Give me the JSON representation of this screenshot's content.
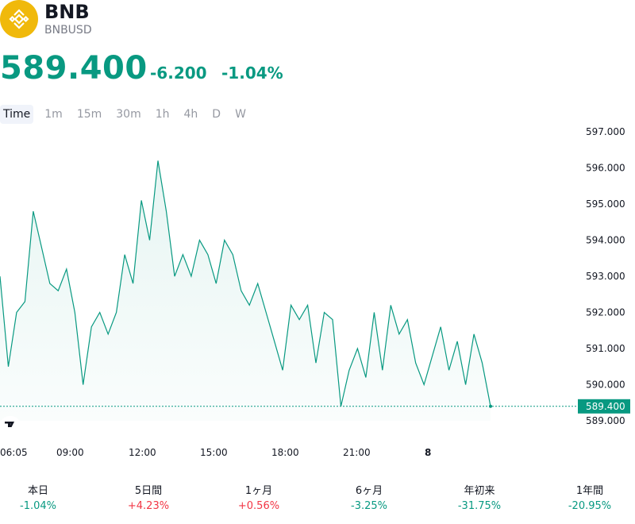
{
  "header": {
    "symbol": "BNB",
    "ticker": "BNBUSD",
    "logo_color": "#F0B90B"
  },
  "quote": {
    "price": "589.400",
    "change": "-6.200",
    "change_pct": "-1.04%",
    "color": "#089981"
  },
  "tabs": [
    {
      "label": "Time",
      "active": true
    },
    {
      "label": "1m"
    },
    {
      "label": "15m"
    },
    {
      "label": "30m"
    },
    {
      "label": "1h"
    },
    {
      "label": "4h"
    },
    {
      "label": "D"
    },
    {
      "label": "W"
    }
  ],
  "chart_data": {
    "type": "area",
    "x_tick_labels": [
      "06:05",
      "09:00",
      "12:00",
      "15:00",
      "18:00",
      "21:00",
      "8"
    ],
    "y_tick_labels": [
      "597.000",
      "596.000",
      "595.000",
      "594.000",
      "593.000",
      "592.000",
      "591.000",
      "590.000",
      "589.000"
    ],
    "ylim": [
      589.0,
      597.0
    ],
    "last_price_label": "589.400",
    "last_price": 589.4,
    "line_color": "#089981",
    "series": [
      {
        "x": [
          "06:05",
          "06:30",
          "07:00",
          "07:30",
          "08:00",
          "08:30",
          "08:45",
          "09:00",
          "09:20",
          "09:40",
          "10:00",
          "10:20",
          "10:40",
          "11:00",
          "11:20",
          "11:40",
          "12:00",
          "12:20",
          "12:40",
          "13:00",
          "13:20",
          "13:40",
          "14:00",
          "14:20",
          "14:40",
          "15:00",
          "15:20",
          "15:40",
          "16:00",
          "16:20",
          "16:40",
          "17:00",
          "17:20",
          "17:40",
          "18:00",
          "18:20",
          "18:40",
          "19:00",
          "19:20",
          "19:40",
          "20:00",
          "20:20",
          "20:40",
          "21:00",
          "21:20",
          "21:40",
          "22:00",
          "22:20",
          "22:40",
          "23:00",
          "23:20",
          "23:40",
          "00:00",
          "00:20",
          "00:40",
          "01:00",
          "01:20",
          "01:40",
          "02:00",
          "02:20"
        ],
        "y": [
          593.0,
          590.5,
          592.0,
          592.3,
          594.8,
          593.8,
          592.8,
          592.6,
          593.2,
          592.0,
          590.0,
          591.6,
          592.0,
          591.4,
          592.0,
          593.6,
          592.8,
          595.1,
          594.0,
          596.2,
          594.8,
          593.0,
          593.6,
          593.0,
          594.0,
          593.6,
          592.8,
          594.0,
          593.6,
          592.6,
          592.2,
          592.8,
          592.0,
          591.2,
          590.4,
          592.2,
          591.8,
          592.2,
          590.6,
          592.0,
          591.8,
          589.4,
          590.4,
          591.0,
          590.2,
          592.0,
          590.4,
          592.2,
          591.4,
          591.8,
          590.6,
          590.0,
          590.8,
          591.6,
          590.4,
          591.2,
          590.0,
          591.4,
          590.6,
          589.4
        ]
      }
    ]
  },
  "performance": [
    {
      "label": "本日",
      "value": "-1.04%",
      "color": "#089981"
    },
    {
      "label": "5日間",
      "value": "+4.23%",
      "color": "#f23645"
    },
    {
      "label": "1ヶ月",
      "value": "+0.56%",
      "color": "#f23645"
    },
    {
      "label": "6ヶ月",
      "value": "-3.25%",
      "color": "#089981"
    },
    {
      "label": "年初来",
      "value": "-31.75%",
      "color": "#089981"
    },
    {
      "label": "1年間",
      "value": "-20.95%",
      "color": "#089981"
    }
  ]
}
